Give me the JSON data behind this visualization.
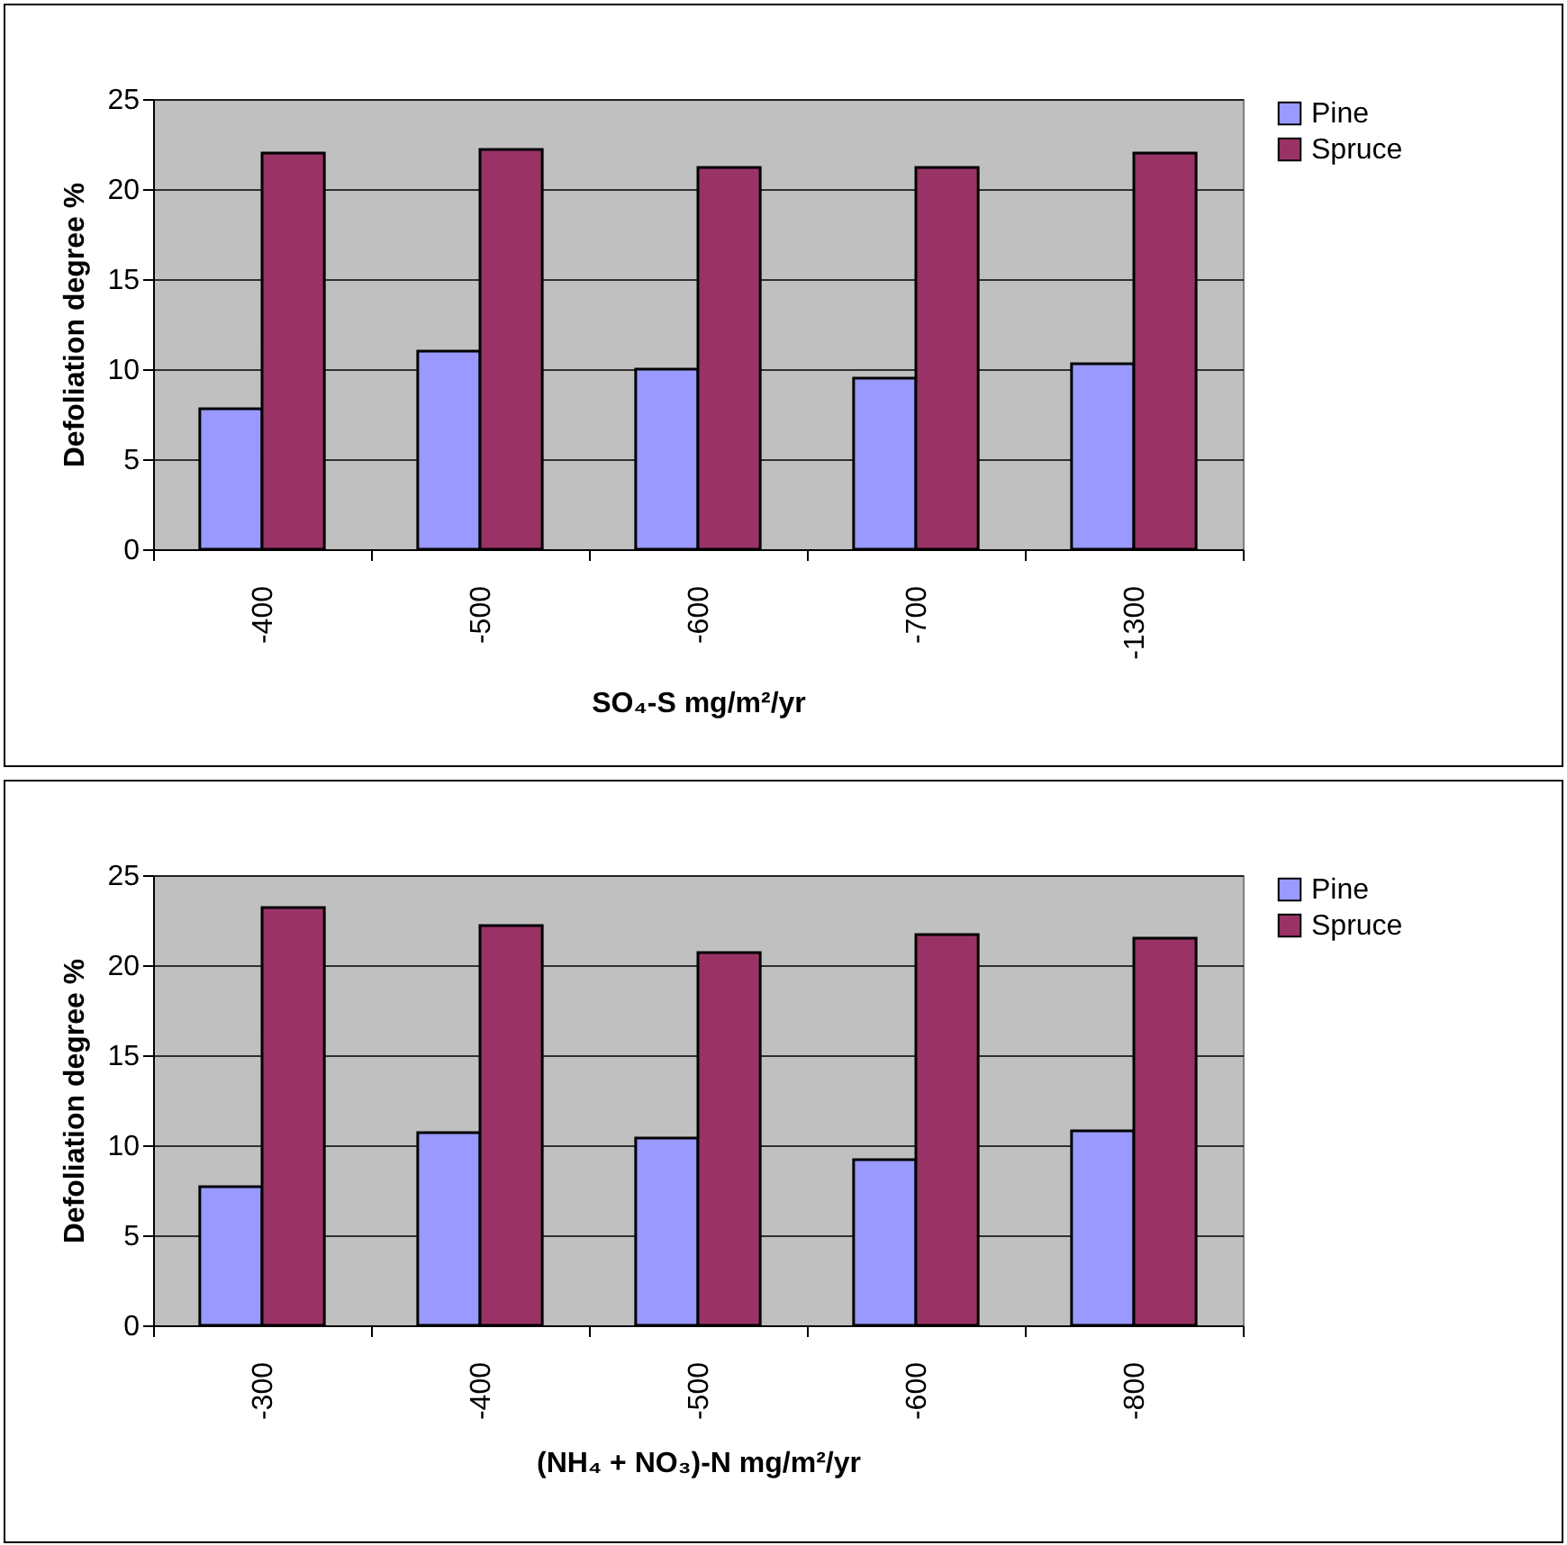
{
  "chart_data": [
    {
      "type": "bar",
      "xlabel": "SO₄-S mg/m²/yr",
      "ylabel": "Defoliation degree %",
      "categories": [
        "-400",
        "-500",
        "-600",
        "-700",
        "-1300"
      ],
      "ylim": [
        0,
        25
      ],
      "yticks": [
        0,
        5,
        10,
        15,
        20,
        25
      ],
      "grid": "y",
      "legend": "right",
      "series": [
        {
          "name": "Pine",
          "color": "#9999ff",
          "values": [
            7.8,
            11.0,
            10.0,
            9.5,
            10.3
          ]
        },
        {
          "name": "Spruce",
          "color": "#993366",
          "values": [
            22.0,
            22.2,
            21.2,
            21.2,
            22.0
          ]
        }
      ]
    },
    {
      "type": "bar",
      "xlabel": "(NH₄ + NO₃)-N mg/m²/yr",
      "ylabel": "Defoliation degree %",
      "categories": [
        "-300",
        "-400",
        "-500",
        "-600",
        "-800"
      ],
      "ylim": [
        0,
        25
      ],
      "yticks": [
        0,
        5,
        10,
        15,
        20,
        25
      ],
      "grid": "y",
      "legend": "right",
      "series": [
        {
          "name": "Pine",
          "color": "#9999ff",
          "values": [
            7.7,
            10.7,
            10.4,
            9.2,
            10.8
          ]
        },
        {
          "name": "Spruce",
          "color": "#993366",
          "values": [
            23.2,
            22.2,
            20.7,
            21.7,
            21.5
          ]
        }
      ]
    }
  ]
}
